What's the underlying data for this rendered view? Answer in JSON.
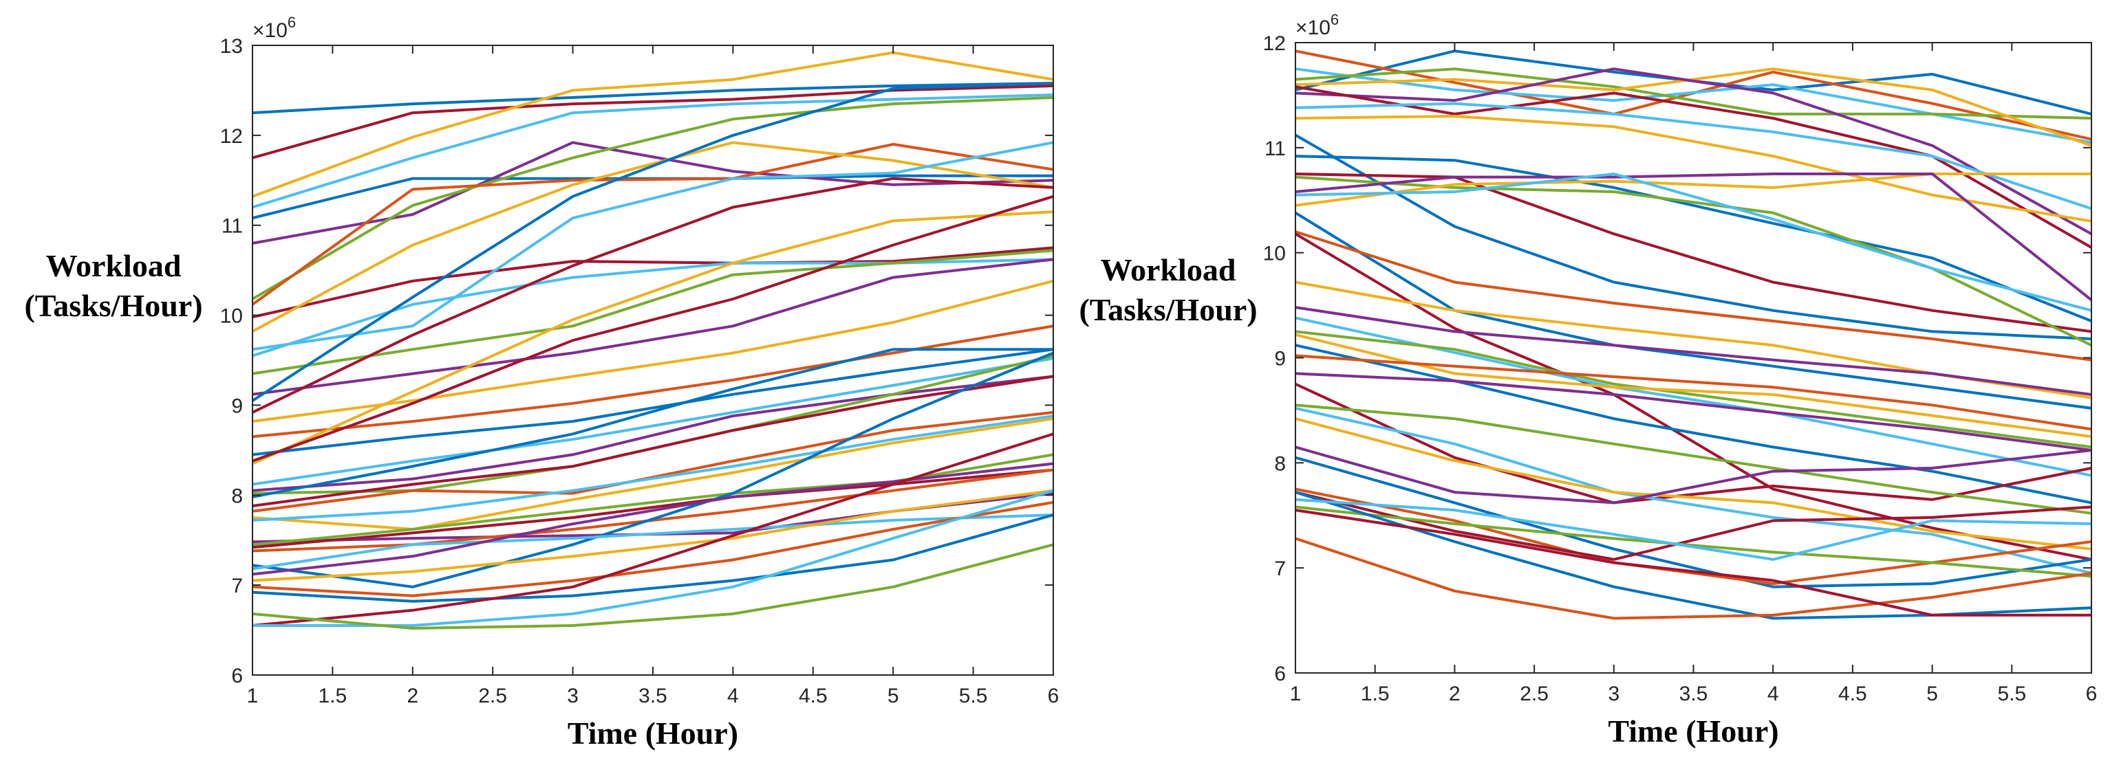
{
  "chart_data": [
    {
      "type": "line",
      "title": "",
      "xlabel": "Time (Hour)",
      "ylabel_line1": "Workload",
      "ylabel_line2": "(Tasks/Hour)",
      "exponent_base": "×10",
      "exponent_power": "6",
      "xlim": [
        1,
        6
      ],
      "ylim": [
        6,
        13
      ],
      "xticks": [
        "1",
        "1.5",
        "2",
        "2.5",
        "3",
        "3.5",
        "4",
        "4.5",
        "5",
        "5.5",
        "6"
      ],
      "yticks": [
        "6",
        "7",
        "8",
        "9",
        "10",
        "11",
        "12",
        "13"
      ],
      "x": [
        1,
        2,
        3,
        4,
        5,
        6
      ],
      "series": [
        {
          "color": "#0072BD",
          "values": [
            12.25,
            12.35,
            12.42,
            12.5,
            12.55,
            12.58
          ]
        },
        {
          "color": "#A2142F",
          "values": [
            11.75,
            12.25,
            12.35,
            12.4,
            12.5,
            12.55
          ]
        },
        {
          "color": "#EDB120",
          "values": [
            11.32,
            11.98,
            12.5,
            12.62,
            12.92,
            12.62
          ]
        },
        {
          "color": "#4DBEEE",
          "values": [
            11.2,
            11.75,
            12.25,
            12.35,
            12.4,
            12.45
          ]
        },
        {
          "color": "#0072BD",
          "values": [
            11.08,
            11.52,
            11.52,
            11.52,
            11.55,
            11.55
          ]
        },
        {
          "color": "#7E2F8E",
          "values": [
            10.8,
            11.12,
            11.92,
            11.6,
            11.45,
            11.5
          ]
        },
        {
          "color": "#77AC30",
          "values": [
            10.18,
            11.22,
            11.75,
            12.18,
            12.35,
            12.42
          ]
        },
        {
          "color": "#D95319",
          "values": [
            10.12,
            11.4,
            11.5,
            11.52,
            11.9,
            11.62
          ]
        },
        {
          "color": "#A2142F",
          "values": [
            9.98,
            10.38,
            10.6,
            10.58,
            10.6,
            10.75
          ]
        },
        {
          "color": "#EDB120",
          "values": [
            9.82,
            10.78,
            11.45,
            11.92,
            11.72,
            11.42
          ]
        },
        {
          "color": "#4DBEEE",
          "values": [
            9.62,
            9.88,
            11.08,
            11.52,
            11.58,
            11.92
          ]
        },
        {
          "color": "#4DBEEE",
          "values": [
            9.55,
            10.12,
            10.42,
            10.58,
            10.58,
            10.62
          ]
        },
        {
          "color": "#77AC30",
          "values": [
            9.35,
            9.62,
            9.88,
            10.45,
            10.58,
            10.72
          ]
        },
        {
          "color": "#7E2F8E",
          "values": [
            9.12,
            9.35,
            9.58,
            9.88,
            10.42,
            10.62
          ]
        },
        {
          "color": "#0072BD",
          "values": [
            9.05,
            10.2,
            11.32,
            12.0,
            12.52,
            12.58
          ]
        },
        {
          "color": "#A2142F",
          "values": [
            8.92,
            9.78,
            10.55,
            11.2,
            11.52,
            11.42
          ]
        },
        {
          "color": "#EDB120",
          "values": [
            8.82,
            9.05,
            9.32,
            9.58,
            9.92,
            10.38
          ]
        },
        {
          "color": "#D95319",
          "values": [
            8.65,
            8.82,
            9.02,
            9.28,
            9.58,
            9.88
          ]
        },
        {
          "color": "#0072BD",
          "values": [
            8.45,
            8.65,
            8.82,
            9.12,
            9.38,
            9.62
          ]
        },
        {
          "color": "#EDB120",
          "values": [
            8.35,
            9.15,
            9.95,
            10.58,
            11.05,
            11.15
          ]
        },
        {
          "color": "#A2142F",
          "values": [
            8.38,
            9.02,
            9.72,
            10.18,
            10.78,
            11.32
          ]
        },
        {
          "color": "#4DBEEE",
          "values": [
            8.12,
            8.38,
            8.62,
            8.92,
            9.22,
            9.52
          ]
        },
        {
          "color": "#7E2F8E",
          "values": [
            8.05,
            8.18,
            8.45,
            8.88,
            9.12,
            9.32
          ]
        },
        {
          "color": "#77AC30",
          "values": [
            8.02,
            8.05,
            8.32,
            8.72,
            9.12,
            9.55
          ]
        },
        {
          "color": "#0072BD",
          "values": [
            7.98,
            8.32,
            8.68,
            9.18,
            9.62,
            9.62
          ]
        },
        {
          "color": "#A2142F",
          "values": [
            7.88,
            8.12,
            8.32,
            8.72,
            9.05,
            9.32
          ]
        },
        {
          "color": "#D95319",
          "values": [
            7.82,
            8.05,
            8.02,
            8.38,
            8.72,
            8.92
          ]
        },
        {
          "color": "#EDB120",
          "values": [
            7.75,
            7.62,
            7.95,
            8.25,
            8.58,
            8.85
          ]
        },
        {
          "color": "#4DBEEE",
          "values": [
            7.72,
            7.82,
            8.05,
            8.32,
            8.62,
            8.88
          ]
        },
        {
          "color": "#7E2F8E",
          "values": [
            7.48,
            7.52,
            7.55,
            7.58,
            7.82,
            8.02
          ]
        },
        {
          "color": "#77AC30",
          "values": [
            7.45,
            7.62,
            7.82,
            8.02,
            8.15,
            8.45
          ]
        },
        {
          "color": "#A2142F",
          "values": [
            7.42,
            7.58,
            7.75,
            7.98,
            8.12,
            8.28
          ]
        },
        {
          "color": "#D95319",
          "values": [
            7.38,
            7.45,
            7.62,
            7.82,
            8.05,
            8.28
          ]
        },
        {
          "color": "#0072BD",
          "values": [
            7.22,
            6.98,
            7.45,
            8.02,
            8.85,
            9.58
          ]
        },
        {
          "color": "#4DBEEE",
          "values": [
            7.18,
            7.45,
            7.52,
            7.62,
            7.72,
            7.78
          ]
        },
        {
          "color": "#EDB120",
          "values": [
            7.05,
            7.15,
            7.32,
            7.52,
            7.82,
            8.05
          ]
        },
        {
          "color": "#7E2F8E",
          "values": [
            7.12,
            7.32,
            7.68,
            7.98,
            8.15,
            8.35
          ]
        },
        {
          "color": "#D95319",
          "values": [
            6.98,
            6.88,
            7.05,
            7.28,
            7.62,
            7.92
          ]
        },
        {
          "color": "#0072BD",
          "values": [
            6.92,
            6.82,
            6.88,
            7.05,
            7.28,
            7.78
          ]
        },
        {
          "color": "#A2142F",
          "values": [
            6.55,
            6.72,
            6.98,
            7.55,
            8.12,
            8.68
          ]
        },
        {
          "color": "#4DBEEE",
          "values": [
            6.55,
            6.55,
            6.68,
            6.98,
            7.52,
            8.05
          ]
        },
        {
          "color": "#77AC30",
          "values": [
            6.68,
            6.52,
            6.55,
            6.68,
            6.98,
            7.45
          ]
        }
      ]
    },
    {
      "type": "line",
      "title": "",
      "xlabel": "Time (Hour)",
      "ylabel_line1": "Workload",
      "ylabel_line2": "(Tasks/Hour)",
      "exponent_base": "×10",
      "exponent_power": "6",
      "xlim": [
        1,
        6
      ],
      "ylim": [
        6,
        12
      ],
      "xticks": [
        "1",
        "1.5",
        "2",
        "2.5",
        "3",
        "3.5",
        "4",
        "4.5",
        "5",
        "5.5",
        "6"
      ],
      "yticks": [
        "6",
        "7",
        "8",
        "9",
        "10",
        "11",
        "12"
      ],
      "x": [
        1,
        2,
        3,
        4,
        5,
        6
      ],
      "series": [
        {
          "color": "#0072BD",
          "values": [
            11.55,
            11.92,
            11.72,
            11.55,
            11.7,
            11.32
          ]
        },
        {
          "color": "#D95319",
          "values": [
            11.92,
            11.62,
            11.32,
            11.72,
            11.42,
            11.08
          ]
        },
        {
          "color": "#4DBEEE",
          "values": [
            11.75,
            11.55,
            11.45,
            11.6,
            11.32,
            11.05
          ]
        },
        {
          "color": "#77AC30",
          "values": [
            11.65,
            11.75,
            11.58,
            11.32,
            11.32,
            11.28
          ]
        },
        {
          "color": "#EDB120",
          "values": [
            11.6,
            11.65,
            11.55,
            11.75,
            11.55,
            11.02
          ]
        },
        {
          "color": "#7E2F8E",
          "values": [
            11.52,
            11.45,
            11.75,
            11.52,
            11.02,
            10.18
          ]
        },
        {
          "color": "#A2142F",
          "values": [
            11.58,
            11.32,
            11.52,
            11.28,
            10.92,
            10.05
          ]
        },
        {
          "color": "#4DBEEE",
          "values": [
            11.38,
            11.42,
            11.32,
            11.15,
            10.92,
            10.42
          ]
        },
        {
          "color": "#EDB120",
          "values": [
            11.28,
            11.3,
            11.2,
            10.92,
            10.55,
            10.3
          ]
        },
        {
          "color": "#0072BD",
          "values": [
            11.12,
            10.25,
            9.72,
            9.45,
            9.25,
            9.18
          ]
        },
        {
          "color": "#0072BD",
          "values": [
            10.92,
            10.88,
            10.62,
            10.28,
            9.95,
            9.35
          ]
        },
        {
          "color": "#A2142F",
          "values": [
            10.75,
            10.72,
            10.18,
            9.72,
            9.45,
            9.25
          ]
        },
        {
          "color": "#77AC30",
          "values": [
            10.72,
            10.62,
            10.58,
            10.38,
            9.85,
            9.12
          ]
        },
        {
          "color": "#EDB120",
          "values": [
            10.45,
            10.65,
            10.68,
            10.62,
            10.75,
            10.75
          ]
        },
        {
          "color": "#7E2F8E",
          "values": [
            10.58,
            10.72,
            10.72,
            10.75,
            10.75,
            9.55
          ]
        },
        {
          "color": "#4DBEEE",
          "values": [
            10.55,
            10.58,
            10.75,
            10.32,
            9.85,
            9.45
          ]
        },
        {
          "color": "#0072BD",
          "values": [
            10.38,
            9.45,
            9.12,
            8.92,
            8.72,
            8.52
          ]
        },
        {
          "color": "#D95319",
          "values": [
            10.2,
            9.72,
            9.52,
            9.35,
            9.18,
            8.98
          ]
        },
        {
          "color": "#A2142F",
          "values": [
            10.18,
            9.28,
            8.65,
            7.75,
            7.38,
            7.08
          ]
        },
        {
          "color": "#EDB120",
          "values": [
            9.72,
            9.45,
            9.28,
            9.12,
            8.85,
            8.62
          ]
        },
        {
          "color": "#7E2F8E",
          "values": [
            9.48,
            9.25,
            9.12,
            8.98,
            8.85,
            8.65
          ]
        },
        {
          "color": "#4DBEEE",
          "values": [
            9.38,
            9.05,
            8.72,
            8.48,
            8.18,
            7.88
          ]
        },
        {
          "color": "#77AC30",
          "values": [
            9.25,
            9.08,
            8.75,
            8.55,
            8.35,
            8.15
          ]
        },
        {
          "color": "#EDB120",
          "values": [
            9.22,
            8.85,
            8.72,
            8.65,
            8.45,
            8.25
          ]
        },
        {
          "color": "#0072BD",
          "values": [
            9.12,
            8.78,
            8.42,
            8.15,
            7.92,
            7.62
          ]
        },
        {
          "color": "#D95319",
          "values": [
            9.02,
            8.92,
            8.82,
            8.72,
            8.55,
            8.32
          ]
        },
        {
          "color": "#7E2F8E",
          "values": [
            8.85,
            8.78,
            8.65,
            8.48,
            8.32,
            8.12
          ]
        },
        {
          "color": "#A2142F",
          "values": [
            8.75,
            8.05,
            7.62,
            7.78,
            7.65,
            7.95
          ]
        },
        {
          "color": "#77AC30",
          "values": [
            8.55,
            8.42,
            8.18,
            7.95,
            7.72,
            7.52
          ]
        },
        {
          "color": "#4DBEEE",
          "values": [
            8.52,
            8.18,
            7.72,
            7.48,
            7.32,
            6.95
          ]
        },
        {
          "color": "#EDB120",
          "values": [
            8.42,
            8.02,
            7.72,
            7.62,
            7.35,
            7.18
          ]
        },
        {
          "color": "#7E2F8E",
          "values": [
            8.15,
            7.72,
            7.62,
            7.92,
            7.95,
            8.12
          ]
        },
        {
          "color": "#0072BD",
          "values": [
            8.05,
            7.62,
            7.18,
            6.82,
            6.85,
            7.08
          ]
        },
        {
          "color": "#D95319",
          "values": [
            7.75,
            7.45,
            7.05,
            6.85,
            7.05,
            7.25
          ]
        },
        {
          "color": "#A2142F",
          "values": [
            7.72,
            7.35,
            7.08,
            7.45,
            7.48,
            7.58
          ]
        },
        {
          "color": "#77AC30",
          "values": [
            7.58,
            7.42,
            7.28,
            7.15,
            7.05,
            6.92
          ]
        },
        {
          "color": "#0072BD",
          "values": [
            7.72,
            7.25,
            6.82,
            6.52,
            6.55,
            6.62
          ]
        },
        {
          "color": "#D95319",
          "values": [
            7.28,
            6.78,
            6.52,
            6.55,
            6.72,
            6.95
          ]
        },
        {
          "color": "#4DBEEE",
          "values": [
            7.65,
            7.55,
            7.32,
            7.08,
            7.45,
            7.42
          ]
        },
        {
          "color": "#A2142F",
          "values": [
            7.55,
            7.32,
            7.05,
            6.88,
            6.55,
            6.55
          ]
        }
      ]
    }
  ]
}
